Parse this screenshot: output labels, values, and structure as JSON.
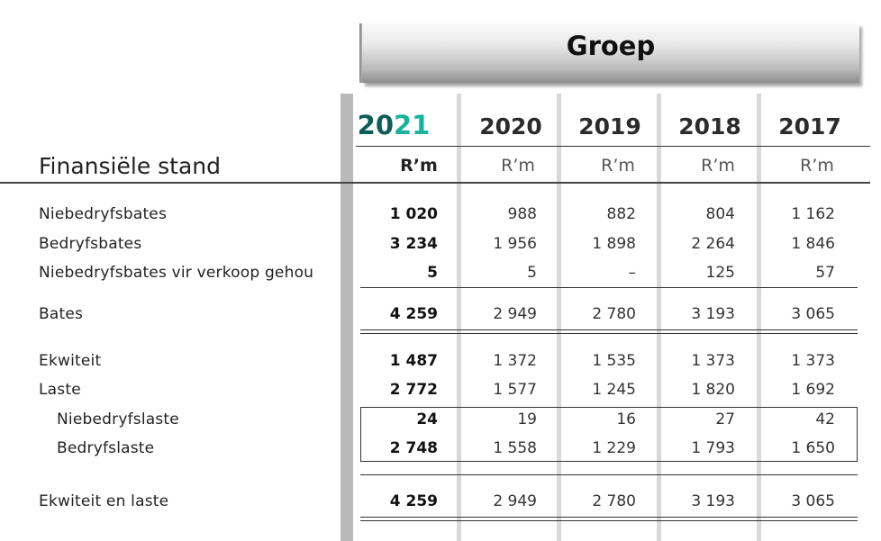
{
  "banner": {
    "title": "Groep"
  },
  "section_title": "Finansiële stand",
  "columns": [
    {
      "year_a": "20",
      "year_b": "21",
      "unit": "R’m"
    },
    {
      "year": "2020",
      "unit": "R’m"
    },
    {
      "year": "2019",
      "unit": "R’m"
    },
    {
      "year": "2018",
      "unit": "R’m"
    },
    {
      "year": "2017",
      "unit": "R’m"
    }
  ],
  "rows": [
    {
      "label": "Niebedryfsbates",
      "values": [
        "1 020",
        "988",
        "882",
        "804",
        "1 162"
      ]
    },
    {
      "label": "Bedryfsbates",
      "values": [
        "3 234",
        "1 956",
        "1 898",
        "2 264",
        "1 846"
      ]
    },
    {
      "label": "Niebedryfsbates vir verkoop gehou",
      "values": [
        "5",
        "5",
        "–",
        "125",
        "57"
      ]
    },
    {
      "label": "Bates",
      "values": [
        "4 259",
        "2 949",
        "2 780",
        "3 193",
        "3 065"
      ]
    },
    {
      "label": "Ekwiteit",
      "values": [
        "1 487",
        "1 372",
        "1 535",
        "1 373",
        "1 373"
      ]
    },
    {
      "label": "Laste",
      "values": [
        "2 772",
        "1 577",
        "1 245",
        "1 820",
        "1 692"
      ]
    },
    {
      "label": "Niebedryfslaste",
      "values": [
        "24",
        "19",
        "16",
        "27",
        "42"
      ]
    },
    {
      "label": "Bedryfslaste",
      "values": [
        "2 748",
        "1 558",
        "1 229",
        "1 793",
        "1 650"
      ]
    },
    {
      "label": "Ekwiteit en laste",
      "values": [
        "4 259",
        "2 949",
        "2 780",
        "3 193",
        "3 065"
      ]
    }
  ]
}
